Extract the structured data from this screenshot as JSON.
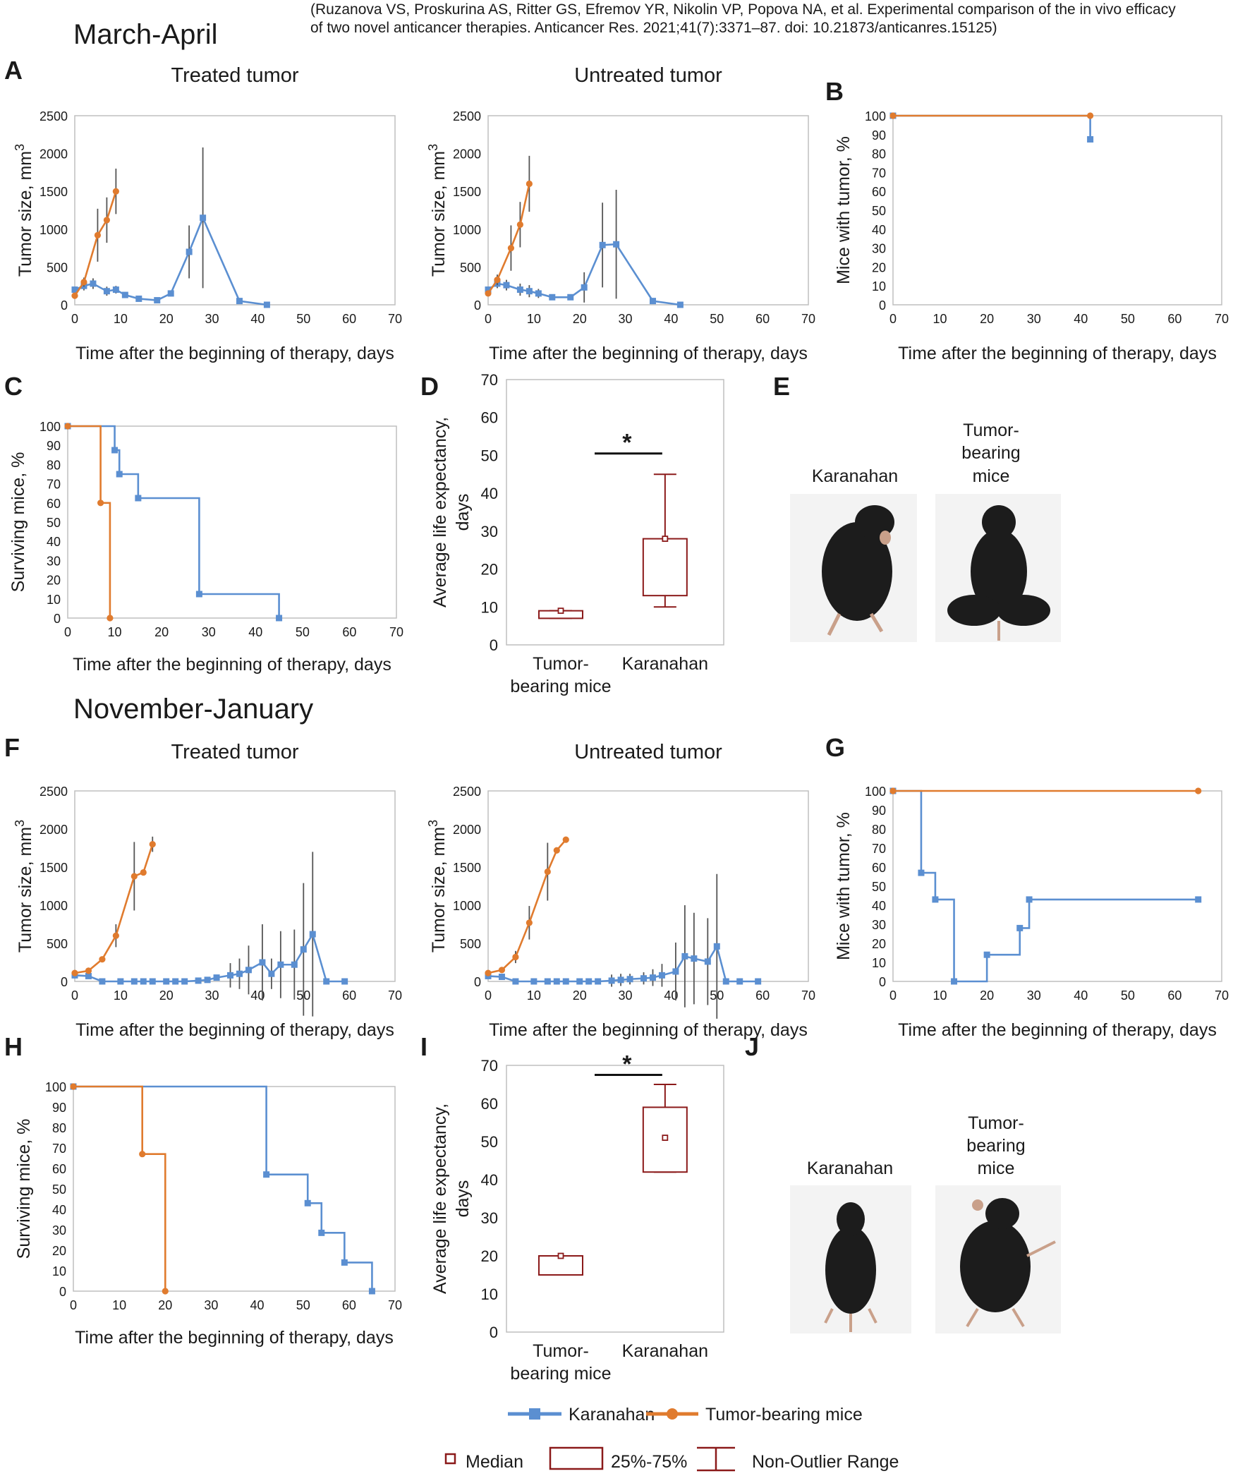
{
  "header": {
    "citation_line1": "(Ruzanova VS, Proskurina AS, Ritter GS, Efremov YR, Nikolin VP, Popova NA, et al. Experimental comparison of the in vivo efficacy",
    "citation_line2": "of two novel anticancer therapies. Anticancer Res. 2021;41(7):3371–87. doi: 10.21873/anticanres.15125)",
    "section1": "March-April",
    "section2": "November-January"
  },
  "colors": {
    "karanahan": "#5b8fd1",
    "tumor_bearing": "#e07b2e",
    "box": "#8b1a1a",
    "axis": "#bfbfbf"
  },
  "photo_labels": {
    "karanahan": "Karanahan",
    "tumor_line1": "Tumor-",
    "tumor_line2": "bearing",
    "tumor_line3": "mice"
  },
  "legend": {
    "karanahan": "Karanahan",
    "tumor_bearing": "Tumor-bearing mice",
    "median": "Median",
    "iqr": "25%-75%",
    "range": "Non-Outlier Range"
  },
  "chart_data": [
    {
      "id": "A1",
      "panel": "A",
      "type": "line",
      "title": "Treated tumor",
      "xlabel": "Time after the beginning of therapy, days",
      "ylabel": "Tumor size, mm",
      "ylabel_sup": "3",
      "xlim": [
        0,
        70
      ],
      "ylim": [
        0,
        2500
      ],
      "xticks": [
        0,
        10,
        20,
        30,
        40,
        50,
        60,
        70
      ],
      "yticks": [
        0,
        500,
        1000,
        1500,
        2000,
        2500
      ],
      "series": [
        {
          "name": "Karanahan",
          "color_key": "karanahan",
          "marker": "square",
          "x": [
            0,
            2,
            4,
            7,
            9,
            11,
            14,
            18,
            21,
            25,
            28,
            36,
            42
          ],
          "y": [
            200,
            250,
            280,
            180,
            200,
            130,
            80,
            60,
            150,
            700,
            1150,
            50,
            0
          ],
          "err": [
            0,
            60,
            70,
            60,
            50,
            30,
            0,
            0,
            0,
            350,
            930,
            0,
            0
          ]
        },
        {
          "name": "Tumor-bearing mice",
          "color_key": "tumor_bearing",
          "marker": "circle",
          "x": [
            0,
            2,
            5,
            7,
            9
          ],
          "y": [
            120,
            300,
            920,
            1120,
            1500
          ],
          "err": [
            0,
            60,
            350,
            300,
            300
          ]
        }
      ]
    },
    {
      "id": "A2",
      "panel": "",
      "type": "line",
      "title": "Untreated tumor",
      "xlabel": "Time after the beginning of therapy, days",
      "ylabel": "Tumor size, mm",
      "ylabel_sup": "3",
      "xlim": [
        0,
        70
      ],
      "ylim": [
        0,
        2500
      ],
      "xticks": [
        0,
        10,
        20,
        30,
        40,
        50,
        60,
        70
      ],
      "yticks": [
        0,
        500,
        1000,
        1500,
        2000,
        2500
      ],
      "series": [
        {
          "name": "Karanahan",
          "color_key": "karanahan",
          "marker": "square",
          "x": [
            0,
            2,
            4,
            7,
            9,
            11,
            14,
            18,
            21,
            25,
            28,
            36,
            42
          ],
          "y": [
            200,
            280,
            260,
            200,
            180,
            150,
            100,
            100,
            230,
            790,
            800,
            50,
            0
          ],
          "err": [
            0,
            60,
            70,
            80,
            80,
            60,
            0,
            0,
            200,
            560,
            720,
            0,
            0
          ]
        },
        {
          "name": "Tumor-bearing mice",
          "color_key": "tumor_bearing",
          "marker": "circle",
          "x": [
            0,
            2,
            5,
            7,
            9
          ],
          "y": [
            150,
            330,
            750,
            1060,
            1600
          ],
          "err": [
            0,
            70,
            300,
            300,
            370
          ]
        }
      ]
    },
    {
      "id": "B",
      "panel": "B",
      "type": "line",
      "xlabel": "Time after the beginning of therapy, days",
      "ylabel": "Mice with tumor, %",
      "xlim": [
        0,
        70
      ],
      "ylim": [
        0,
        100
      ],
      "xticks": [
        0,
        10,
        20,
        30,
        40,
        50,
        60,
        70
      ],
      "yticks": [
        0,
        10,
        20,
        30,
        40,
        50,
        60,
        70,
        80,
        90,
        100
      ],
      "series": [
        {
          "name": "Karanahan",
          "color_key": "karanahan",
          "marker": "square",
          "step": true,
          "x": [
            0,
            42
          ],
          "y": [
            100,
            87.5
          ]
        },
        {
          "name": "Tumor-bearing mice",
          "color_key": "tumor_bearing",
          "marker": "circle",
          "x": [
            0,
            42
          ],
          "y": [
            100,
            100
          ]
        }
      ]
    },
    {
      "id": "C",
      "panel": "C",
      "type": "line",
      "xlabel": "Time after the beginning of therapy, days",
      "ylabel": "Surviving mice, %",
      "xlim": [
        0,
        70
      ],
      "ylim": [
        0,
        100
      ],
      "xticks": [
        0,
        10,
        20,
        30,
        40,
        50,
        60,
        70
      ],
      "yticks": [
        0,
        10,
        20,
        30,
        40,
        50,
        60,
        70,
        80,
        90,
        100
      ],
      "series": [
        {
          "name": "Karanahan",
          "color_key": "karanahan",
          "marker": "square",
          "step": true,
          "x": [
            0,
            10,
            11,
            15,
            28,
            45
          ],
          "y": [
            100,
            87.5,
            75,
            62.5,
            12.5,
            0
          ]
        },
        {
          "name": "Tumor-bearing mice",
          "color_key": "tumor_bearing",
          "marker": "circle",
          "step": true,
          "x": [
            0,
            7,
            9
          ],
          "y": [
            100,
            60,
            0
          ]
        }
      ]
    },
    {
      "id": "D",
      "panel": "D",
      "type": "box",
      "ylabel": "Average life expectancy,",
      "ylabel2": "days",
      "ylim": [
        0,
        70
      ],
      "yticks": [
        0,
        10,
        20,
        30,
        40,
        50,
        60,
        70
      ],
      "categories": [
        [
          "Tumor-",
          "bearing mice"
        ],
        [
          "Karanahan"
        ]
      ],
      "boxes": [
        {
          "median": 9,
          "q1": 7,
          "q3": 9,
          "min": 7,
          "max": 9
        },
        {
          "median": 28,
          "q1": 13,
          "q3": 28,
          "min": 10,
          "max": 45
        }
      ],
      "significance": "*"
    },
    {
      "id": "F1",
      "panel": "F",
      "type": "line",
      "title": "Treated tumor",
      "xlabel": "Time after the beginning of therapy, days",
      "ylabel": "Tumor size, mm",
      "ylabel_sup": "3",
      "xlim": [
        0,
        70
      ],
      "ylim": [
        0,
        2500
      ],
      "xticks": [
        0,
        10,
        20,
        30,
        40,
        50,
        60,
        70
      ],
      "yticks": [
        0,
        500,
        1000,
        1500,
        2000,
        2500
      ],
      "series": [
        {
          "name": "Karanahan",
          "color_key": "karanahan",
          "marker": "square",
          "x": [
            0,
            3,
            6,
            10,
            13,
            15,
            17,
            20,
            22,
            24,
            27,
            29,
            31,
            34,
            36,
            38,
            41,
            43,
            45,
            48,
            50,
            52,
            55,
            59
          ],
          "y": [
            80,
            70,
            0,
            0,
            0,
            0,
            0,
            0,
            0,
            0,
            10,
            20,
            50,
            80,
            100,
            150,
            250,
            100,
            220,
            220,
            420,
            620,
            0,
            0
          ],
          "err": [
            0,
            0,
            0,
            0,
            0,
            0,
            0,
            0,
            0,
            0,
            0,
            0,
            0,
            160,
            200,
            320,
            500,
            200,
            440,
            460,
            870,
            1080,
            0,
            0
          ]
        },
        {
          "name": "Tumor-bearing mice",
          "color_key": "tumor_bearing",
          "marker": "circle",
          "x": [
            0,
            3,
            6,
            9,
            13,
            15,
            17
          ],
          "y": [
            110,
            140,
            290,
            600,
            1380,
            1430,
            1800
          ],
          "err": [
            0,
            0,
            0,
            150,
            450,
            0,
            100
          ]
        }
      ]
    },
    {
      "id": "F2",
      "panel": "",
      "type": "line",
      "title": "Untreated tumor",
      "xlabel": "Time after the beginning of therapy, days",
      "ylabel": "Tumor size, mm",
      "ylabel_sup": "3",
      "xlim": [
        0,
        70
      ],
      "ylim": [
        0,
        2500
      ],
      "xticks": [
        0,
        10,
        20,
        30,
        40,
        50,
        60,
        70
      ],
      "yticks": [
        0,
        500,
        1000,
        1500,
        2000,
        2500
      ],
      "series": [
        {
          "name": "Karanahan",
          "color_key": "karanahan",
          "marker": "square",
          "x": [
            0,
            3,
            6,
            10,
            13,
            15,
            17,
            20,
            22,
            24,
            27,
            29,
            31,
            34,
            36,
            38,
            41,
            43,
            45,
            48,
            50,
            52,
            55,
            59
          ],
          "y": [
            70,
            60,
            0,
            0,
            0,
            0,
            0,
            0,
            0,
            0,
            10,
            20,
            30,
            40,
            50,
            80,
            130,
            330,
            300,
            260,
            460,
            0,
            0,
            0
          ],
          "err": [
            0,
            0,
            0,
            0,
            0,
            0,
            0,
            0,
            0,
            0,
            80,
            80,
            70,
            80,
            110,
            150,
            380,
            670,
            600,
            570,
            950,
            0,
            0,
            0
          ]
        },
        {
          "name": "Tumor-bearing mice",
          "color_key": "tumor_bearing",
          "marker": "circle",
          "x": [
            0,
            3,
            6,
            9,
            13,
            15,
            17
          ],
          "y": [
            110,
            150,
            320,
            770,
            1440,
            1720,
            1860
          ],
          "err": [
            0,
            0,
            80,
            220,
            380,
            0,
            0
          ]
        }
      ]
    },
    {
      "id": "G",
      "panel": "G",
      "type": "line",
      "xlabel": "Time after the beginning of therapy, days",
      "ylabel": "Mice with tumor, %",
      "xlim": [
        0,
        70
      ],
      "ylim": [
        0,
        100
      ],
      "xticks": [
        0,
        10,
        20,
        30,
        40,
        50,
        60,
        70
      ],
      "yticks": [
        0,
        10,
        20,
        30,
        40,
        50,
        60,
        70,
        80,
        90,
        100
      ],
      "series": [
        {
          "name": "Karanahan",
          "color_key": "karanahan",
          "marker": "square",
          "step": true,
          "x": [
            0,
            6,
            9,
            13,
            20,
            27,
            29,
            65
          ],
          "y": [
            100,
            57,
            43,
            0,
            14,
            28,
            43,
            43
          ]
        },
        {
          "name": "Tumor-bearing mice",
          "color_key": "tumor_bearing",
          "marker": "circle",
          "x": [
            0,
            65
          ],
          "y": [
            100,
            100
          ]
        }
      ]
    },
    {
      "id": "H",
      "panel": "H",
      "type": "line",
      "xlabel": "Time after the beginning of therapy, days",
      "ylabel": "Surviving mice, %",
      "xlim": [
        0,
        70
      ],
      "ylim": [
        0,
        100
      ],
      "xticks": [
        0,
        10,
        20,
        30,
        40,
        50,
        60,
        70
      ],
      "yticks": [
        0,
        10,
        20,
        30,
        40,
        50,
        60,
        70,
        80,
        90,
        100
      ],
      "series": [
        {
          "name": "Karanahan",
          "color_key": "karanahan",
          "marker": "square",
          "step": true,
          "x": [
            0,
            42,
            51,
            54,
            59,
            65
          ],
          "y": [
            100,
            57,
            43,
            28.5,
            14,
            0
          ]
        },
        {
          "name": "Tumor-bearing mice",
          "color_key": "tumor_bearing",
          "marker": "circle",
          "step": true,
          "x": [
            0,
            15,
            20
          ],
          "y": [
            100,
            67,
            0
          ]
        }
      ]
    },
    {
      "id": "I",
      "panel": "I",
      "type": "box",
      "ylabel": "Average life expectancy,",
      "ylabel2": "days",
      "ylim": [
        0,
        70
      ],
      "yticks": [
        0,
        10,
        20,
        30,
        40,
        50,
        60,
        70
      ],
      "categories": [
        [
          "Tumor-",
          "bearing mice"
        ],
        [
          "Karanahan"
        ]
      ],
      "boxes": [
        {
          "median": 20,
          "q1": 15,
          "q3": 20,
          "min": 15,
          "max": 20
        },
        {
          "median": 51,
          "q1": 42,
          "q3": 59,
          "min": 42,
          "max": 65
        }
      ],
      "significance": "*"
    }
  ],
  "photo_panels": [
    {
      "panel": "E"
    },
    {
      "panel": "J"
    }
  ]
}
